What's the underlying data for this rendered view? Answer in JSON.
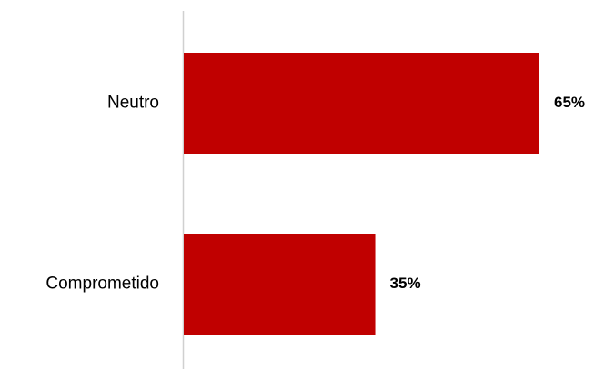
{
  "chart_data": {
    "type": "bar",
    "orientation": "horizontal",
    "categories": [
      "Neutro",
      "Comprometido"
    ],
    "values": [
      65,
      35
    ],
    "value_labels": [
      "65%",
      "35%"
    ],
    "unit": "%",
    "title": "",
    "xlabel": "",
    "ylabel": "",
    "xlim": [
      0,
      100
    ],
    "grid": false,
    "legend": "none",
    "bar_color": "#c00000",
    "axis_color": "#d0d0d0"
  }
}
